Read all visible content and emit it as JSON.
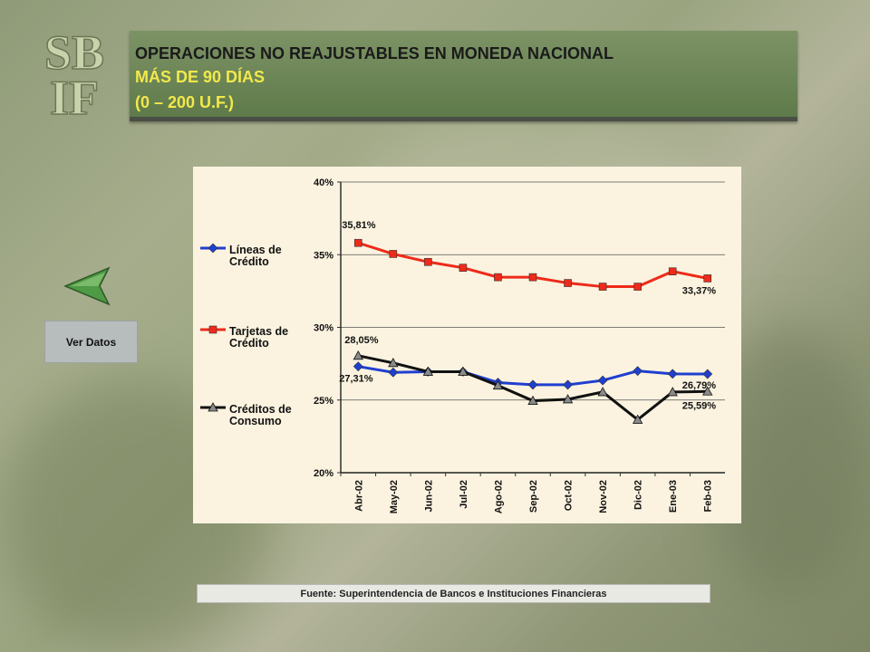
{
  "logo": {
    "text_top": "SB",
    "text_bottom": "IF"
  },
  "header": {
    "title_line1": "OPERACIONES NO REAJUSTABLES EN MONEDA NACIONAL",
    "title_line2": "MÁS DE 90 DÍAS",
    "title_line3": "(0 – 200 U.F.)"
  },
  "nav": {
    "back_icon": "back-arrow-icon",
    "ver_datos_label": "Ver Datos"
  },
  "legend": {
    "item1": "Líneas de Crédito",
    "item2": "Tarjetas de Crédito",
    "item3": "Créditos de Consumo"
  },
  "source": "Fuente:  Superintendencia  de Bancos  e Instituciones Financieras",
  "chart_data": {
    "type": "line",
    "categories": [
      "Abr-02",
      "May-02",
      "Jun-02",
      "Jul-02",
      "Ago-02",
      "Sep-02",
      "Oct-02",
      "Nov-02",
      "Dic-02",
      "Ene-03",
      "Feb-03"
    ],
    "ylim": [
      20,
      40
    ],
    "yticks": [
      "20%",
      "25%",
      "30%",
      "35%",
      "40%"
    ],
    "grid": true,
    "legend_position": "left",
    "series": [
      {
        "name": "Líneas de Crédito",
        "color": "#1f3fd0",
        "marker": "diamond",
        "values": [
          27.31,
          26.9,
          26.95,
          26.95,
          26.2,
          26.05,
          26.05,
          26.35,
          27.0,
          26.8,
          26.79
        ]
      },
      {
        "name": "Tarjetas de Crédito",
        "color": "#ee2a1a",
        "marker": "square",
        "values": [
          35.81,
          35.05,
          34.5,
          34.1,
          33.45,
          33.45,
          33.05,
          32.8,
          32.8,
          33.85,
          33.37
        ]
      },
      {
        "name": "Créditos de Consumo",
        "color": "#111111",
        "marker": "triangle",
        "values": [
          28.05,
          27.55,
          26.95,
          26.95,
          26.0,
          24.95,
          25.05,
          25.55,
          23.65,
          25.55,
          25.59
        ]
      }
    ],
    "annotations": [
      {
        "text": "35,81%"
      },
      {
        "text": "33,37%"
      },
      {
        "text": "28,05%"
      },
      {
        "text": "27,31%"
      },
      {
        "text": "26,79%"
      },
      {
        "text": "25,59%"
      }
    ]
  }
}
